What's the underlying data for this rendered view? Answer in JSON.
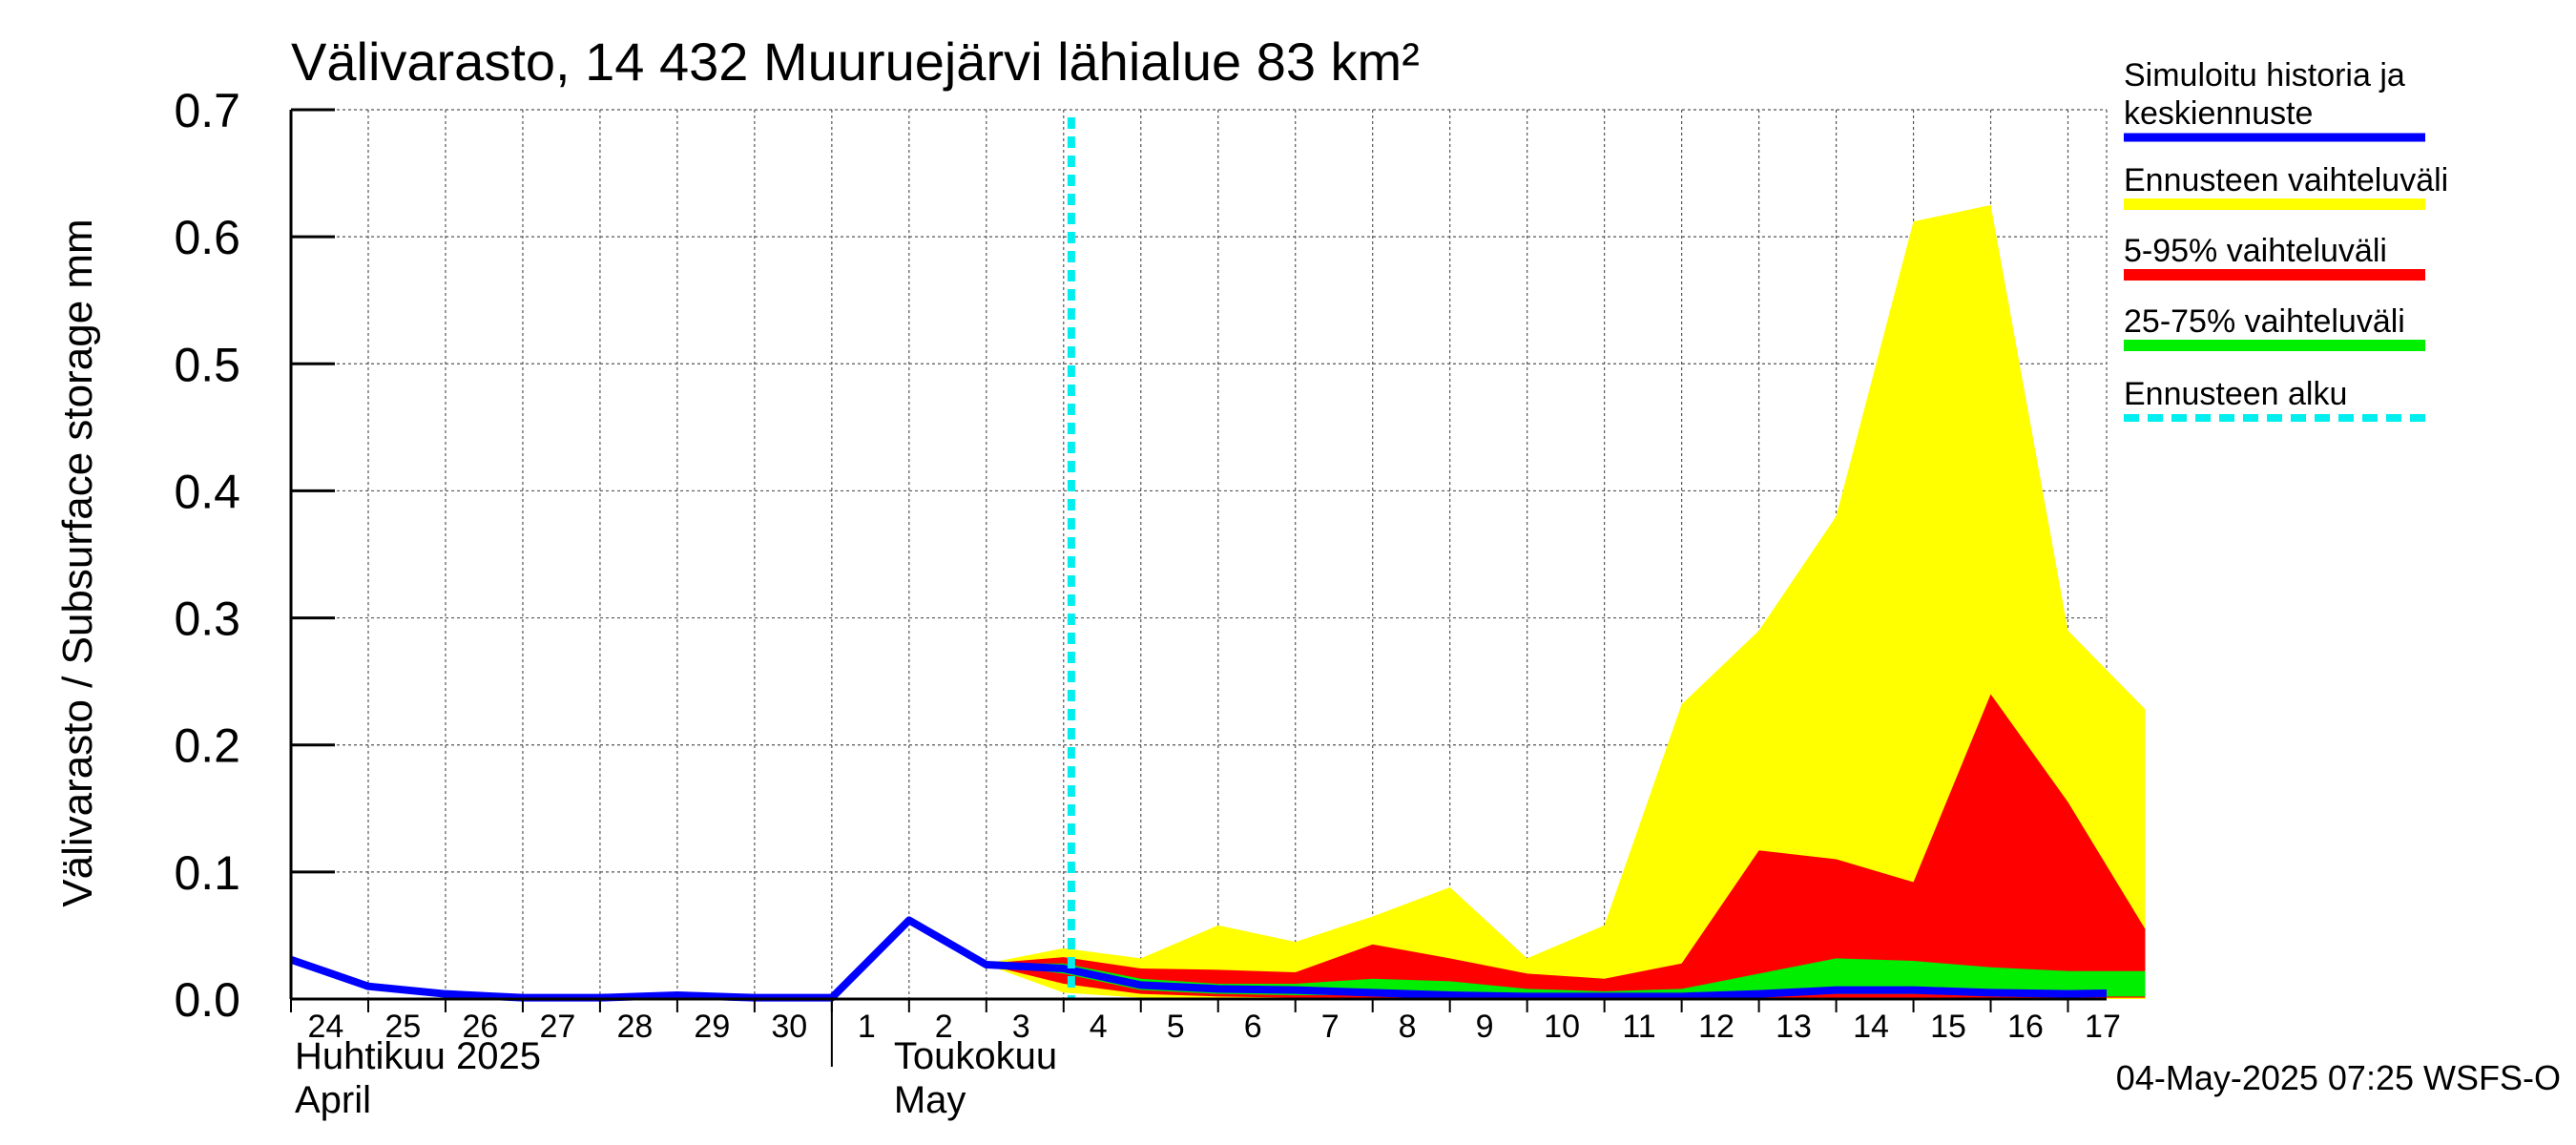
{
  "chart_data": {
    "type": "area",
    "title": "Välivarasto, 14 432 Muuruejärvi lähialue 83 km²",
    "ylabel": "Välivarasto / Subsurface storage  mm",
    "ylim": [
      0,
      0.7
    ],
    "yticks": [
      "0.0",
      "0.1",
      "0.2",
      "0.3",
      "0.4",
      "0.5",
      "0.6",
      "0.7"
    ],
    "grid": true,
    "x_start": "2025-04-24",
    "x_end": "2025-05-17",
    "x_ticks": [
      "24",
      "25",
      "26",
      "27",
      "28",
      "29",
      "30",
      "1",
      "2",
      "3",
      "4",
      "5",
      "6",
      "7",
      "8",
      "9",
      "10",
      "11",
      "12",
      "13",
      "14",
      "15",
      "16",
      "17"
    ],
    "month_labels": [
      {
        "fi": "Huhtikuu  2025",
        "en": "April"
      },
      {
        "fi": "Toukokuu",
        "en": "May"
      }
    ],
    "forecast_start": "2025-05-04",
    "timestamp": "04-May-2025 07:25 WSFS-O",
    "legend_position": "right",
    "legend": [
      {
        "label": "Simuloitu historia ja keskiennuste",
        "color": "#0000ff",
        "style": "line"
      },
      {
        "label": "Ennusteen vaihteluväli",
        "color": "#ffff00",
        "style": "band"
      },
      {
        "label": "5-95% vaihteluväli",
        "color": "#ff0000",
        "style": "band"
      },
      {
        "label": "25-75% vaihteluväli",
        "color": "#00ee00",
        "style": "band"
      },
      {
        "label": "Ennusteen alku",
        "color": "#00eeee",
        "style": "dashed"
      }
    ],
    "series": [
      {
        "name": "Simuloitu historia ja keskiennuste",
        "x": [
          "2025-04-24",
          "2025-04-25",
          "2025-04-26",
          "2025-04-27",
          "2025-04-28",
          "2025-04-29",
          "2025-04-30",
          "2025-05-01",
          "2025-05-02",
          "2025-05-03",
          "2025-05-04",
          "2025-05-05",
          "2025-05-06",
          "2025-05-07",
          "2025-05-08",
          "2025-05-09",
          "2025-05-10",
          "2025-05-11",
          "2025-05-12",
          "2025-05-13",
          "2025-05-14",
          "2025-05-15",
          "2025-05-16",
          "2025-05-17",
          "2025-05-18"
        ],
        "y": [
          0.031,
          0.01,
          0.004,
          0.001,
          0.001,
          0.003,
          0.001,
          0.001,
          0.062,
          0.027,
          0.024,
          0.011,
          0.008,
          0.007,
          0.005,
          0.003,
          0.002,
          0.002,
          0.002,
          0.004,
          0.007,
          0.007,
          0.005,
          0.004,
          0.005
        ]
      }
    ],
    "bands": [
      {
        "name": "Ennusteen vaihteluväli",
        "color": "#ffff00",
        "x": [
          "2025-05-03",
          "2025-05-04",
          "2025-05-05",
          "2025-05-06",
          "2025-05-07",
          "2025-05-08",
          "2025-05-09",
          "2025-05-10",
          "2025-05-11",
          "2025-05-12",
          "2025-05-13",
          "2025-05-14",
          "2025-05-15",
          "2025-05-16",
          "2025-05-17",
          "2025-05-18"
        ],
        "upper": [
          0.028,
          0.04,
          0.032,
          0.058,
          0.045,
          0.065,
          0.088,
          0.032,
          0.058,
          0.232,
          0.29,
          0.38,
          0.612,
          0.625,
          0.29,
          0.228
        ],
        "lower": [
          0.027,
          0.005,
          0.001,
          0.0,
          0.0,
          0.0,
          0.0,
          0.0,
          0.0,
          0.0,
          0.0,
          0.0,
          0.0,
          0.0,
          0.0,
          0.0
        ]
      },
      {
        "name": "5-95% vaihteluväli",
        "color": "#ff0000",
        "x": [
          "2025-05-03",
          "2025-05-04",
          "2025-05-05",
          "2025-05-06",
          "2025-05-07",
          "2025-05-08",
          "2025-05-09",
          "2025-05-10",
          "2025-05-11",
          "2025-05-12",
          "2025-05-13",
          "2025-05-14",
          "2025-05-15",
          "2025-05-16",
          "2025-05-17",
          "2025-05-18"
        ],
        "upper": [
          0.028,
          0.033,
          0.024,
          0.023,
          0.021,
          0.043,
          0.032,
          0.02,
          0.016,
          0.028,
          0.117,
          0.11,
          0.092,
          0.24,
          0.155,
          0.055
        ],
        "lower": [
          0.027,
          0.012,
          0.004,
          0.002,
          0.001,
          0.001,
          0.001,
          0.001,
          0.001,
          0.001,
          0.001,
          0.001,
          0.001,
          0.001,
          0.001,
          0.001
        ]
      },
      {
        "name": "25-75% vaihteluväli",
        "color": "#00ee00",
        "x": [
          "2025-05-03",
          "2025-05-04",
          "2025-05-05",
          "2025-05-06",
          "2025-05-07",
          "2025-05-08",
          "2025-05-09",
          "2025-05-10",
          "2025-05-11",
          "2025-05-12",
          "2025-05-13",
          "2025-05-14",
          "2025-05-15",
          "2025-05-16",
          "2025-05-17",
          "2025-05-18"
        ],
        "upper": [
          0.028,
          0.028,
          0.016,
          0.012,
          0.012,
          0.016,
          0.014,
          0.008,
          0.006,
          0.008,
          0.02,
          0.032,
          0.03,
          0.025,
          0.022,
          0.022
        ],
        "lower": [
          0.027,
          0.02,
          0.007,
          0.004,
          0.003,
          0.003,
          0.002,
          0.002,
          0.001,
          0.001,
          0.002,
          0.004,
          0.004,
          0.003,
          0.002,
          0.002
        ]
      }
    ]
  }
}
